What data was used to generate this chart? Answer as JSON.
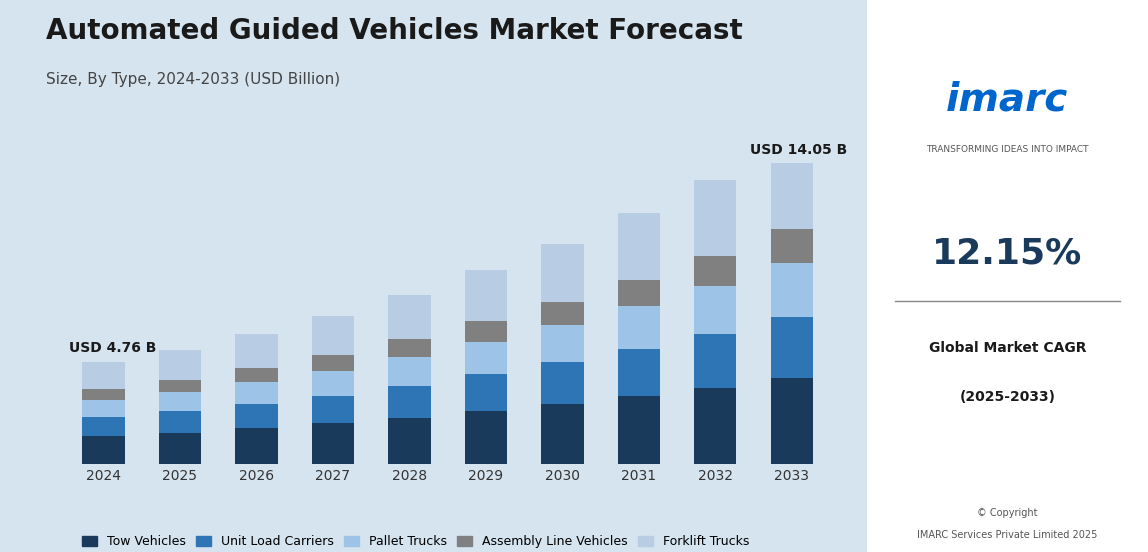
{
  "title": "Automated Guided Vehicles Market Forecast",
  "subtitle": "Size, By Type, 2024-2033 (USD Billion)",
  "years": [
    2024,
    2025,
    2026,
    2027,
    2028,
    2029,
    2030,
    2031,
    2032,
    2033
  ],
  "annotation_first": "USD 4.76 B",
  "annotation_last": "USD 14.05 B",
  "segments": {
    "Tow Vehicles": {
      "color": "#1a3a5c",
      "values": [
        1.3,
        1.45,
        1.65,
        1.88,
        2.15,
        2.45,
        2.78,
        3.15,
        3.55,
        4.0
      ]
    },
    "Unit Load Carriers": {
      "color": "#2e75b6",
      "values": [
        0.9,
        1.0,
        1.15,
        1.3,
        1.5,
        1.72,
        1.96,
        2.23,
        2.52,
        2.84
      ]
    },
    "Pallet Trucks": {
      "color": "#9dc3e6",
      "values": [
        0.8,
        0.9,
        1.02,
        1.16,
        1.33,
        1.53,
        1.74,
        1.98,
        2.24,
        2.52
      ]
    },
    "Assembly Line Vehicles": {
      "color": "#808080",
      "values": [
        0.5,
        0.56,
        0.64,
        0.73,
        0.84,
        0.97,
        1.1,
        1.25,
        1.42,
        1.6
      ]
    },
    "Forklift Trucks": {
      "color": "#b8cce4",
      "values": [
        1.26,
        1.41,
        1.59,
        1.82,
        2.08,
        2.38,
        2.71,
        3.09,
        3.52,
        3.09
      ]
    }
  },
  "bg_color": "#d6e4f0",
  "plot_bg_color": "#d6e4f0",
  "title_fontsize": 20,
  "subtitle_fontsize": 11,
  "legend_fontsize": 9,
  "bar_width": 0.55,
  "ylim": [
    0,
    16
  ],
  "imarc_color": "#0066cc",
  "imarc_tagline": "TRANSFORMING IDEAS INTO IMPACT",
  "cagr_value": "12.15%",
  "cagr_label1": "Global Market CAGR",
  "cagr_label2": "(2025-2033)",
  "copyright1": "© Copyright",
  "copyright2": "IMARC Services Private Limited 2025"
}
